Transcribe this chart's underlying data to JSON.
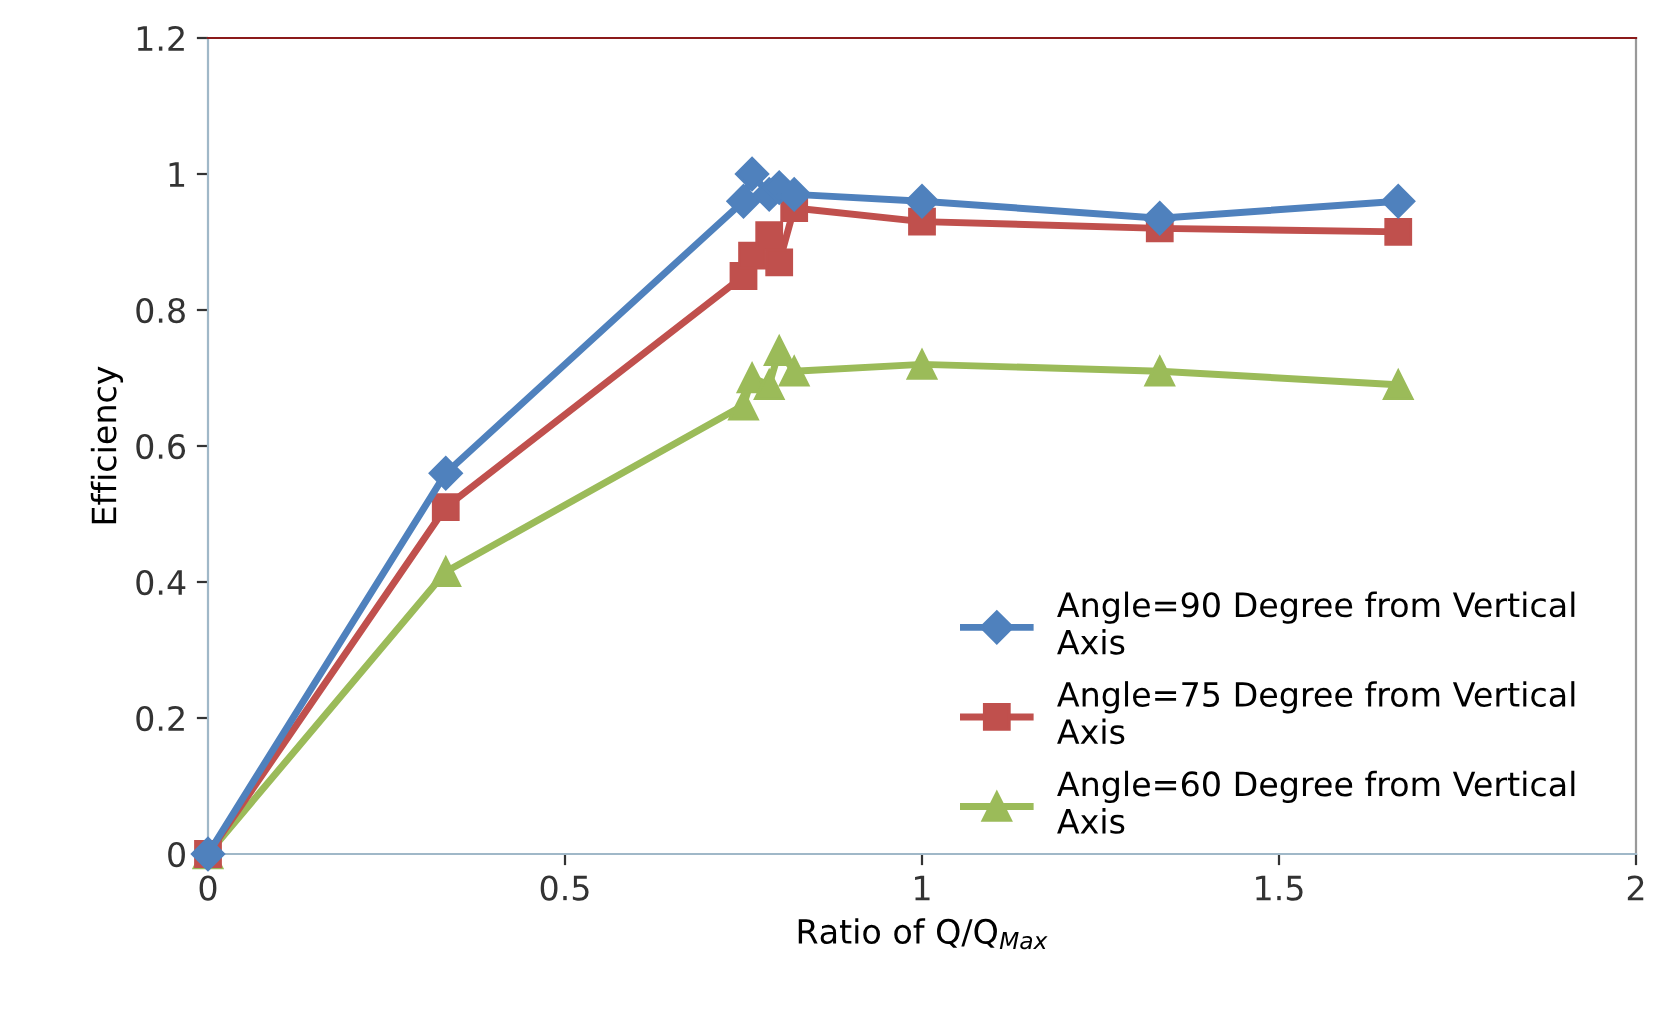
{
  "chart_data": {
    "type": "line",
    "xlabel": "Ratio of Q/Q$_{Max}$",
    "ylabel": "Efficiency",
    "x": [
      0,
      0.333,
      0.75,
      0.762,
      0.786,
      0.8,
      0.821,
      1.0,
      1.333,
      1.667
    ],
    "series": [
      {
        "name": "Angle=90 Degree from Vertical Axis",
        "color": "#4f81bd",
        "marker": "diamond",
        "values": [
          0,
          0.56,
          0.96,
          1.0,
          0.97,
          0.98,
          0.97,
          0.96,
          0.935,
          0.96
        ]
      },
      {
        "name": "Angle=75 Degree from Vertical Axis",
        "color": "#c0504d",
        "marker": "square",
        "values": [
          0,
          0.51,
          0.85,
          0.88,
          0.91,
          0.87,
          0.95,
          0.93,
          0.92,
          0.915
        ]
      },
      {
        "name": "Angle=60 Degree from Vertical Axis",
        "color": "#9bbb59",
        "marker": "triangle",
        "values": [
          0,
          0.415,
          0.66,
          0.7,
          0.69,
          0.74,
          0.71,
          0.72,
          0.71,
          0.69
        ]
      }
    ],
    "xlim": [
      0,
      2
    ],
    "xticks": [
      0,
      0.5,
      1,
      1.5,
      2
    ],
    "ylim": [
      0,
      1.2
    ],
    "yticks": [
      0,
      0.2,
      0.4,
      0.6,
      0.8,
      1,
      1.2
    ],
    "grid": false,
    "legend": "bottom right"
  }
}
